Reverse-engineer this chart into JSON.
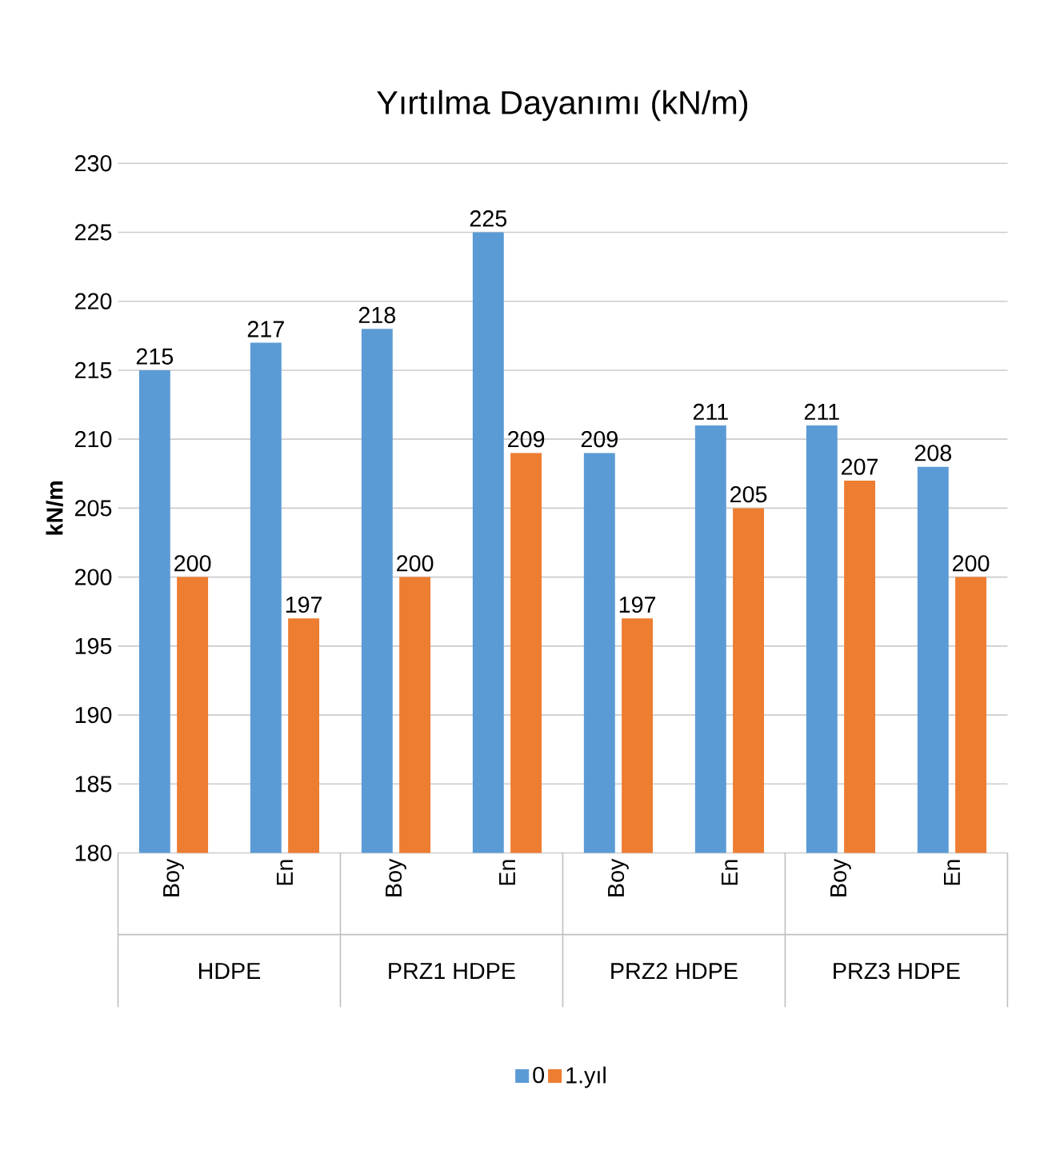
{
  "chart_data": {
    "type": "bar",
    "title": "Yırtılma Dayanımı (kN/m)",
    "ylabel": "kN/m",
    "categories": [
      "Boy",
      "En",
      "Boy",
      "En",
      "Boy",
      "En",
      "Boy",
      "En"
    ],
    "annotations": [
      "HDPE",
      "PRZ1 HDPE",
      "PRZ2 HDPE",
      "PRZ3 HDPE"
    ],
    "series": [
      {
        "name": "0",
        "color": "#5b9bd5",
        "values": [
          215,
          217,
          218,
          225,
          209,
          211,
          211,
          208
        ]
      },
      {
        "name": "1.yıl",
        "color": "#ed7d31",
        "values": [
          200,
          197,
          200,
          209,
          197,
          205,
          207,
          200
        ]
      }
    ],
    "ylim": [
      180,
      230
    ],
    "yticks": [
      180,
      185,
      190,
      195,
      200,
      205,
      210,
      215,
      220,
      225,
      230
    ],
    "grid": "y",
    "legend": "bottom",
    "data_labels": true
  }
}
